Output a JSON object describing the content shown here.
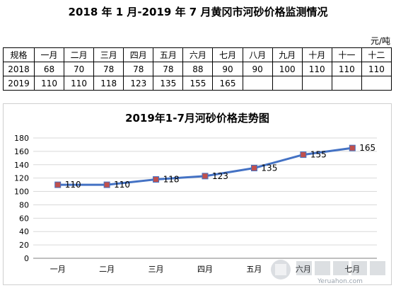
{
  "page_title": "2018 年 1 月-2019 年 7 月黄冈市河砂价格监测情况",
  "unit": "元/吨",
  "table": {
    "header": [
      "规格",
      "一月",
      "二月",
      "三月",
      "四月",
      "五月",
      "六月",
      "七月",
      "八月",
      "九月",
      "十月",
      "十一",
      "十二"
    ],
    "rows": [
      [
        "2018",
        "68",
        "70",
        "78",
        "78",
        "78",
        "88",
        "90",
        "90",
        "100",
        "110",
        "110",
        "110"
      ],
      [
        "2019",
        "110",
        "110",
        "118",
        "123",
        "135",
        "155",
        "165",
        "",
        "",
        "",
        "",
        ""
      ]
    ]
  },
  "chart_data": {
    "type": "line",
    "title": "2019年1-7月河砂价格走势图",
    "categories": [
      "一月",
      "二月",
      "三月",
      "四月",
      "五月",
      "六月",
      "七月"
    ],
    "values": [
      110,
      110,
      118,
      123,
      135,
      155,
      165
    ],
    "ylim": [
      0,
      180
    ],
    "yticks": [
      0,
      20,
      40,
      60,
      80,
      100,
      120,
      140,
      160,
      180
    ],
    "grid": true,
    "line_color": "#4472c4",
    "marker_color": "#c0504d"
  },
  "watermark": "Yeruahon.com"
}
